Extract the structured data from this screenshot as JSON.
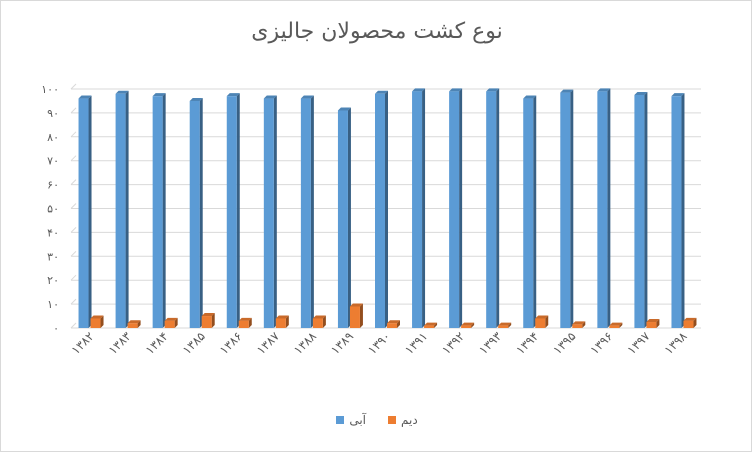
{
  "chart_data": {
    "type": "bar",
    "title": "نوع کشت محصولان جالیزی",
    "categories": [
      "۱۳۸۲",
      "۱۳۸۳",
      "۱۳۸۴",
      "۱۳۸۵",
      "۱۳۸۶",
      "۱۳۸۷",
      "۱۳۸۸",
      "۱۳۸۹",
      "۱۳۹۰",
      "۱۳۹۱",
      "۱۳۹۲",
      "۱۳۹۳",
      "۱۳۹۴",
      "۱۳۹۵",
      "۱۳۹۶",
      "۱۳۹۷",
      "۱۳۹۸"
    ],
    "y_ticks": [
      "۰",
      "۱۰",
      "۲۰",
      "۳۰",
      "۴۰",
      "۵۰",
      "۶۰",
      "۷۰",
      "۸۰",
      "۹۰",
      "۱۰۰"
    ],
    "ylim": [
      0,
      100
    ],
    "series": [
      {
        "name": "آبی",
        "color": "#5b9bd5",
        "values": [
          96,
          98,
          97,
          95,
          97,
          96,
          96,
          91,
          98,
          99,
          99,
          99,
          96,
          98.5,
          99,
          97.5,
          97
        ]
      },
      {
        "name": "دیم",
        "color": "#ed7d31",
        "values": [
          4,
          2,
          3,
          5,
          3,
          4,
          4,
          9,
          2,
          1,
          1,
          1,
          4,
          1.5,
          1,
          2.5,
          3
        ]
      }
    ],
    "legend_position": "bottom",
    "grid": true
  }
}
